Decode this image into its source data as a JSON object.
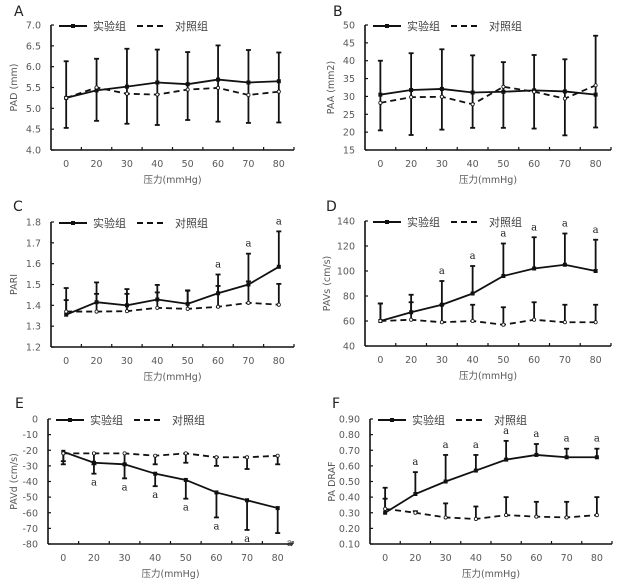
{
  "legend": {
    "experimental": "实验组",
    "control": "对照组"
  },
  "colors": {
    "line": "#111111",
    "tick_text": "#595959",
    "background": "#ffffff"
  },
  "chart_data": [
    {
      "id": "A",
      "type": "line",
      "panel_label": "A",
      "xlabel": "压力(mmHg)",
      "ylabel": "PAD (mm)",
      "categories": [
        "0",
        "20",
        "30",
        "40",
        "50",
        "60",
        "70",
        "80"
      ],
      "ylim": [
        4.0,
        7.0
      ],
      "yticks": [
        "7.0",
        "6.5",
        "6.0",
        "5.5",
        "5.0",
        "4.5",
        "4.0"
      ],
      "ytick_values": [
        7.0,
        6.5,
        6.0,
        5.5,
        5.0,
        4.5,
        4.0
      ],
      "legend_position": "top-left",
      "series": [
        {
          "name": "实验组",
          "style": "solid",
          "values": [
            5.25,
            5.43,
            5.52,
            5.62,
            5.58,
            5.69,
            5.62,
            5.65
          ],
          "error_high": [
            6.13,
            6.19,
            6.43,
            6.41,
            6.35,
            6.51,
            6.4,
            6.34
          ],
          "error_low": [
            4.53,
            4.7,
            4.63,
            4.6,
            4.72,
            4.68,
            4.65,
            4.66
          ]
        },
        {
          "name": "对照组",
          "style": "dashed",
          "values": [
            5.25,
            5.5,
            5.35,
            5.33,
            5.45,
            5.49,
            5.32,
            5.4
          ]
        }
      ],
      "significance": [],
      "significance_position": "above"
    },
    {
      "id": "B",
      "type": "line",
      "panel_label": "B",
      "xlabel": "压力(mmHg)",
      "ylabel": "PAA (mm2)",
      "categories": [
        "0",
        "20",
        "30",
        "40",
        "50",
        "60",
        "70",
        "80"
      ],
      "ylim": [
        15,
        50
      ],
      "yticks": [
        "50",
        "45",
        "40",
        "35",
        "30",
        "25",
        "20",
        "15"
      ],
      "ytick_values": [
        50,
        45,
        40,
        35,
        30,
        25,
        20,
        15
      ],
      "legend_position": "top-left",
      "series": [
        {
          "name": "实验组",
          "style": "solid",
          "values": [
            30.5,
            31.8,
            32.1,
            31.1,
            31.3,
            31.7,
            31.4,
            30.5
          ],
          "error_high": [
            40.0,
            42.1,
            43.2,
            41.5,
            39.6,
            41.6,
            40.4,
            47.0
          ],
          "error_low": [
            20.5,
            19.2,
            20.7,
            21.2,
            21.2,
            21.0,
            19.1,
            21.3
          ]
        },
        {
          "name": "对照组",
          "style": "dashed",
          "values": [
            28.2,
            29.8,
            29.9,
            27.8,
            32.7,
            31.3,
            29.4,
            33.1
          ]
        }
      ],
      "significance": [],
      "significance_position": "above"
    },
    {
      "id": "C",
      "type": "line",
      "panel_label": "C",
      "xlabel": "压力(mmHg)",
      "ylabel": "PARI",
      "categories": [
        "0",
        "20",
        "30",
        "40",
        "50",
        "60",
        "70",
        "80"
      ],
      "ylim": [
        1.2,
        1.8
      ],
      "yticks": [
        "1.8",
        "1.7",
        "1.6",
        "1.5",
        "1.4",
        "1.3",
        "1.2"
      ],
      "ytick_values": [
        1.8,
        1.7,
        1.6,
        1.5,
        1.4,
        1.3,
        1.2
      ],
      "legend_position": "top-left",
      "series": [
        {
          "name": "实验组",
          "style": "solid",
          "values": [
            1.355,
            1.415,
            1.4,
            1.428,
            1.407,
            1.458,
            1.5,
            1.585
          ],
          "error_high": [
            1.483,
            1.51,
            1.478,
            1.498,
            1.472,
            1.548,
            1.648,
            1.755
          ]
        },
        {
          "name": "对照组",
          "style": "dashed",
          "values": [
            1.37,
            1.37,
            1.372,
            1.388,
            1.383,
            1.393,
            1.412,
            1.403
          ],
          "error_high": [
            1.425,
            1.455,
            1.455,
            1.462,
            1.47,
            1.493,
            1.515,
            1.503
          ]
        }
      ],
      "significance": [
        "",
        "",
        "",
        "",
        "",
        "a",
        "a",
        "a"
      ],
      "significance_position": "above"
    },
    {
      "id": "D",
      "type": "line",
      "panel_label": "D",
      "xlabel": "压力(mmHg)",
      "ylabel": "PAVs (cm/s)",
      "categories": [
        "0",
        "20",
        "30",
        "40",
        "50",
        "60",
        "70",
        "80"
      ],
      "ylim": [
        40,
        140
      ],
      "yticks": [
        "140",
        "120",
        "100",
        "80",
        "60",
        "40"
      ],
      "ytick_values": [
        140,
        120,
        100,
        80,
        60,
        40
      ],
      "legend_position": "top-left",
      "series": [
        {
          "name": "实验组",
          "style": "solid",
          "values": [
            60,
            67,
            73,
            82,
            96,
            102,
            105,
            100
          ],
          "error_high": [
            74,
            81,
            92,
            104,
            122,
            127,
            130,
            125
          ]
        },
        {
          "name": "对照组",
          "style": "dashed",
          "values": [
            60,
            61,
            59,
            60,
            57,
            61,
            59,
            59
          ],
          "error_high": [
            74,
            75,
            73,
            73,
            71,
            75,
            73,
            73
          ]
        }
      ],
      "significance": [
        "",
        "",
        "a",
        "a",
        "a",
        "a",
        "a",
        "a"
      ],
      "significance_position": "above"
    },
    {
      "id": "E",
      "type": "line",
      "panel_label": "E",
      "xlabel": "压力(mmHg)",
      "ylabel": "PAVd (cm/s)",
      "categories": [
        "0",
        "20",
        "30",
        "40",
        "50",
        "60",
        "70",
        "80"
      ],
      "ylim": [
        -80,
        0
      ],
      "yticks": [
        "0",
        "-10",
        "-20",
        "-30",
        "-40",
        "-50",
        "-60",
        "-70",
        "-80"
      ],
      "ytick_values": [
        0,
        -10,
        -20,
        -30,
        -40,
        -50,
        -60,
        -70,
        -80
      ],
      "legend_position": "top-left",
      "series": [
        {
          "name": "实验组",
          "style": "solid",
          "values": [
            -21,
            -28,
            -29,
            -35,
            -39,
            -47,
            -52,
            -57
          ],
          "error_low": [
            -29,
            -35,
            -38,
            -43,
            -51,
            -63,
            -71,
            -73
          ]
        },
        {
          "name": "对照组",
          "style": "dashed",
          "values": [
            -22,
            -22,
            -22,
            -23.5,
            -22,
            -24.5,
            -24.5,
            -23.5
          ],
          "error_low": [
            -27,
            -29,
            -29,
            -29,
            -28,
            -30,
            -32,
            -29
          ]
        }
      ],
      "significance": [
        "",
        "a",
        "a",
        "a",
        "a",
        "a",
        "a",
        "a"
      ],
      "significance_position": "below"
    },
    {
      "id": "F",
      "type": "line",
      "panel_label": "F",
      "xlabel": "压力(mmHg)",
      "ylabel": "PA DRAF",
      "categories": [
        "0",
        "20",
        "30",
        "40",
        "50",
        "60",
        "70",
        "80"
      ],
      "ylim": [
        0.1,
        0.9
      ],
      "yticks": [
        "0.90",
        "0.80",
        "0.70",
        "0.60",
        "0.50",
        "0.40",
        "0.30",
        "0.20",
        "0.10"
      ],
      "ytick_values": [
        0.9,
        0.8,
        0.7,
        0.6,
        0.5,
        0.4,
        0.3,
        0.2,
        0.1
      ],
      "legend_position": "top-left",
      "series": [
        {
          "name": "实验组",
          "style": "solid",
          "values": [
            0.3,
            0.42,
            0.5,
            0.57,
            0.64,
            0.67,
            0.655,
            0.655
          ],
          "error_high": [
            0.46,
            0.56,
            0.67,
            0.67,
            0.76,
            0.74,
            0.71,
            0.71
          ]
        },
        {
          "name": "对照组",
          "style": "dashed",
          "values": [
            0.325,
            0.3,
            0.27,
            0.26,
            0.285,
            0.275,
            0.27,
            0.285
          ],
          "error_high": [
            0.39,
            0.31,
            0.36,
            0.34,
            0.4,
            0.37,
            0.37,
            0.4
          ]
        }
      ],
      "significance": [
        "",
        "a",
        "a",
        "a",
        "a",
        "a",
        "a",
        "a"
      ],
      "significance_position": "above"
    }
  ]
}
